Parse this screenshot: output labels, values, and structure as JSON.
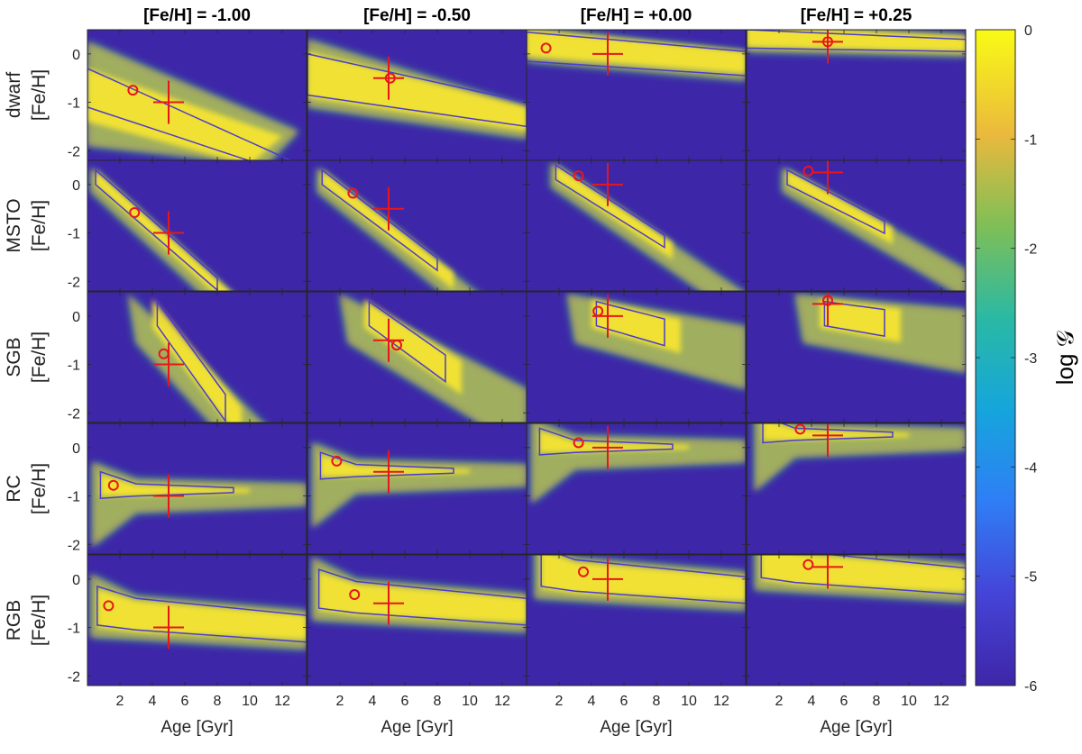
{
  "chart_data": {
    "type": "heatmap",
    "columns": [
      {
        "title": "[Fe/H] = -1.00",
        "feh": -1.0
      },
      {
        "title": "[Fe/H] = -0.50",
        "feh": -0.5
      },
      {
        "title": "[Fe/H] = +0.00",
        "feh": 0.0
      },
      {
        "title": "[Fe/H] = +0.25",
        "feh": 0.25
      }
    ],
    "rows": [
      {
        "label": "dwarf",
        "ylabel": "[Fe/H]"
      },
      {
        "label": "MSTO",
        "ylabel": "[Fe/H]"
      },
      {
        "label": "SGB",
        "ylabel": "[Fe/H]"
      },
      {
        "label": "RC",
        "ylabel": "[Fe/H]"
      },
      {
        "label": "RGB",
        "ylabel": "[Fe/H]"
      }
    ],
    "xlabel": "Age [Gyr]",
    "xlim": [
      0,
      13.5
    ],
    "ylim": [
      -2.2,
      0.5
    ],
    "xticks": [
      "2",
      "4",
      "6",
      "8",
      "10",
      "12"
    ],
    "xtick_values": [
      2,
      4,
      6,
      8,
      10,
      12
    ],
    "yticks": [
      "0",
      "-1",
      "-2"
    ],
    "ytick_values": [
      0,
      -1,
      -2
    ],
    "true_age": 5.0,
    "estimates": [
      [
        {
          "age": 2.8,
          "feh": -0.75
        },
        {
          "age": 5.1,
          "feh": -0.5
        },
        {
          "age": 1.2,
          "feh": 0.12
        },
        {
          "age": 5.0,
          "feh": 0.25
        }
      ],
      [
        {
          "age": 2.9,
          "feh": -0.58
        },
        {
          "age": 2.8,
          "feh": -0.18
        },
        {
          "age": 3.2,
          "feh": 0.18
        },
        {
          "age": 3.8,
          "feh": 0.28
        }
      ],
      [
        {
          "age": 4.7,
          "feh": -0.78
        },
        {
          "age": 5.5,
          "feh": -0.6
        },
        {
          "age": 4.4,
          "feh": 0.1
        },
        {
          "age": 5.0,
          "feh": 0.32
        }
      ],
      [
        {
          "age": 1.6,
          "feh": -0.78
        },
        {
          "age": 1.8,
          "feh": -0.28
        },
        {
          "age": 3.2,
          "feh": 0.1
        },
        {
          "age": 3.3,
          "feh": 0.38
        }
      ],
      [
        {
          "age": 1.3,
          "feh": -0.55
        },
        {
          "age": 2.9,
          "feh": -0.32
        },
        {
          "age": 3.5,
          "feh": 0.15
        },
        {
          "age": 3.8,
          "feh": 0.3
        }
      ]
    ],
    "colorbar": {
      "label": "log 𝒢",
      "range": [
        -6,
        0
      ],
      "ticks": [
        "0",
        "-1",
        "-2",
        "-3",
        "-4",
        "-5",
        "-6"
      ],
      "tick_values": [
        0,
        -1,
        -2,
        -3,
        -4,
        -5,
        -6
      ]
    }
  }
}
